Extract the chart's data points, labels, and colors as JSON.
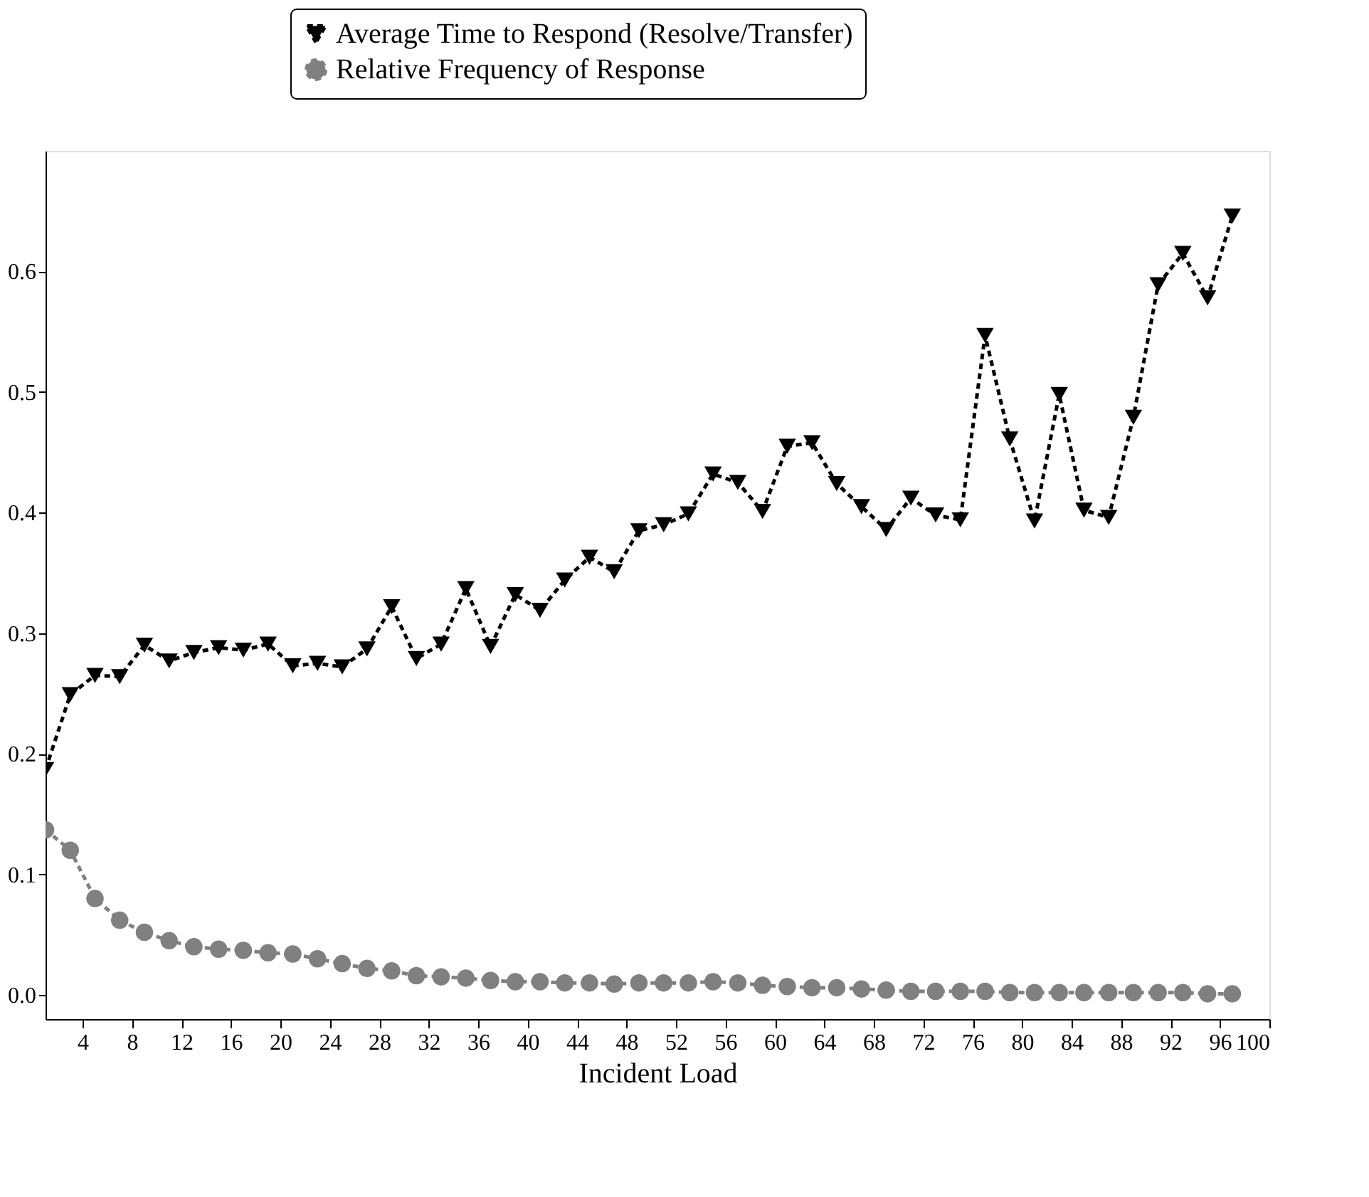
{
  "chart_data": {
    "type": "line",
    "xlabel": "Incident Load",
    "x": [
      1,
      3,
      5,
      7,
      9,
      11,
      13,
      15,
      17,
      19,
      21,
      23,
      25,
      27,
      29,
      31,
      33,
      35,
      37,
      39,
      41,
      43,
      45,
      47,
      49,
      51,
      53,
      55,
      57,
      59,
      61,
      63,
      65,
      67,
      69,
      71,
      73,
      75,
      77,
      79,
      81,
      83,
      85,
      87,
      89,
      91,
      93,
      95,
      97
    ],
    "series": [
      {
        "name": "Average Time to Respond (Resolve/Transfer)",
        "color": "#000000",
        "marker": "triangle",
        "line_style": "dashed",
        "values": [
          0.187,
          0.249,
          0.265,
          0.264,
          0.29,
          0.277,
          0.284,
          0.288,
          0.286,
          0.291,
          0.273,
          0.275,
          0.272,
          0.287,
          0.322,
          0.279,
          0.291,
          0.337,
          0.289,
          0.332,
          0.319,
          0.344,
          0.363,
          0.351,
          0.385,
          0.39,
          0.399,
          0.432,
          0.425,
          0.401,
          0.455,
          0.458,
          0.424,
          0.405,
          0.386,
          0.412,
          0.398,
          0.394,
          0.547,
          0.461,
          0.393,
          0.498,
          0.402,
          0.396,
          0.479,
          0.589,
          0.615,
          0.578,
          0.646
        ]
      },
      {
        "name": "Relative Frequency of Response",
        "color": "#808080",
        "marker": "circle",
        "line_style": "dashed",
        "values": [
          0.137,
          0.12,
          0.08,
          0.062,
          0.052,
          0.045,
          0.04,
          0.038,
          0.037,
          0.035,
          0.034,
          0.03,
          0.026,
          0.022,
          0.02,
          0.016,
          0.015,
          0.014,
          0.012,
          0.011,
          0.011,
          0.01,
          0.01,
          0.009,
          0.01,
          0.01,
          0.01,
          0.011,
          0.01,
          0.008,
          0.007,
          0.006,
          0.006,
          0.005,
          0.004,
          0.003,
          0.003,
          0.003,
          0.003,
          0.002,
          0.002,
          0.002,
          0.002,
          0.002,
          0.002,
          0.002,
          0.002,
          0.001,
          0.001
        ]
      }
    ],
    "xlim": [
      1,
      100
    ],
    "xticks": [
      4,
      8,
      12,
      16,
      20,
      24,
      28,
      32,
      36,
      40,
      44,
      48,
      52,
      56,
      60,
      64,
      68,
      72,
      76,
      80,
      84,
      88,
      92,
      96,
      100
    ],
    "ylim": [
      -0.02,
      0.7
    ],
    "yticks": [
      {
        "value": 0,
        "label": "0.0"
      },
      0.1,
      0.2,
      0.3,
      0.4,
      0.5,
      0.6
    ],
    "grid": false,
    "legend": "top"
  }
}
